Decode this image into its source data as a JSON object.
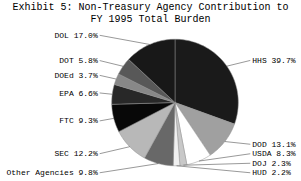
{
  "chart_data": {
    "type": "pie",
    "title": "Exhibit 5: Non-Treasury Agency Contribution to\nFY 1995 Total Burden",
    "categories": [
      "HHS 39.7%",
      "DOD 13.1%",
      "USDA 8.3%",
      "DOJ 2.3%",
      "HUD 2.2%",
      "Other Agencies 9.8%",
      "SEC 12.2%",
      "FTC 9.3%",
      "EPA 6.6%",
      "DOEd 3.7%",
      "DOT 5.8%",
      "DOL 17.0%"
    ],
    "values": [
      39.7,
      13.1,
      8.3,
      2.3,
      2.2,
      9.8,
      12.2,
      9.3,
      6.6,
      3.7,
      5.8,
      17.0
    ],
    "colors": [
      "#1a1a1a",
      "#a0a0a0",
      "#ffffff",
      "#c8c8c8",
      "#f0f0f0",
      "#686868",
      "#b8b8b8",
      "#080808",
      "#282828",
      "#888888",
      "#585858",
      "#181818"
    ]
  }
}
